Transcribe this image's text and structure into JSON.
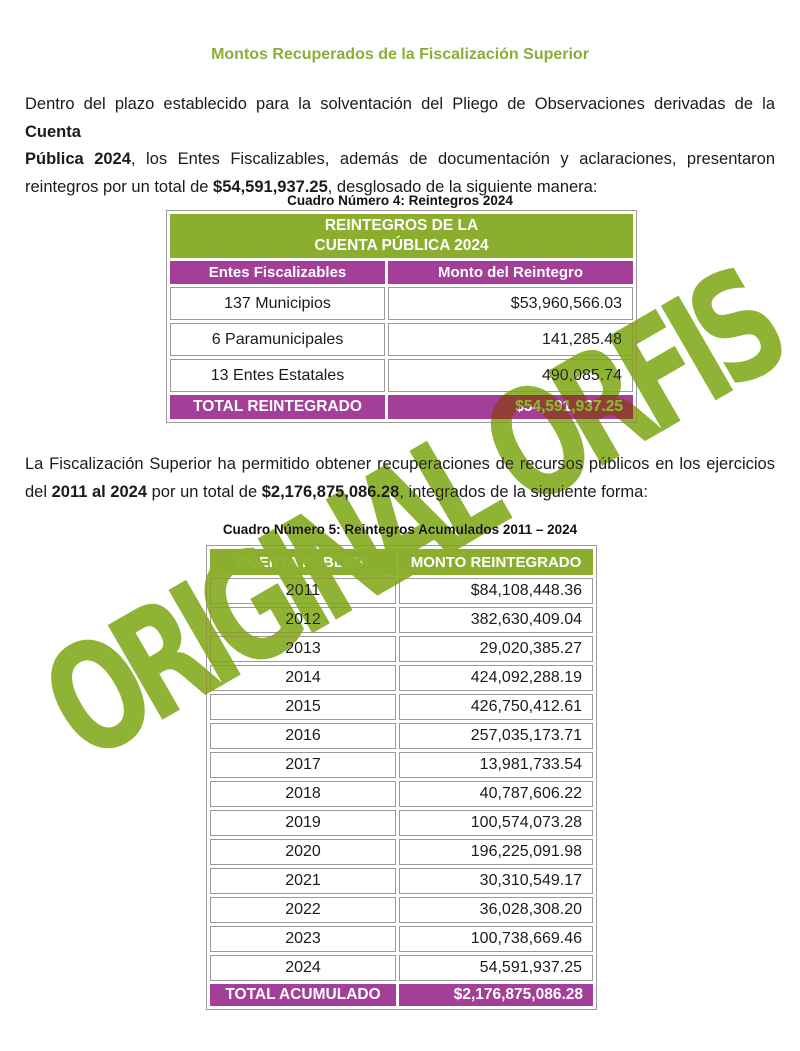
{
  "colors": {
    "green": "#8BAE2F",
    "title_green": "#8BAD3A",
    "purple": "#A33F99",
    "border": "#9A9A9A",
    "watermark": "#8FB335",
    "text": "#1B1B1B"
  },
  "title": "Montos Recuperados de la Fiscalización Superior",
  "paragraph1": {
    "lines": [
      {
        "j": true,
        "s": [
          {
            "t": "Dentro del plazo establecido para la solventación del Pliego de Observaciones derivadas de la ",
            "b": false
          },
          {
            "t": "Cuenta",
            "b": true
          }
        ]
      },
      {
        "j": true,
        "s": [
          {
            "t": "Pública 2024",
            "b": true
          },
          {
            "t": ", los Entes Fiscalizables, además de documentación y aclaraciones, presentaron",
            "b": false
          }
        ]
      },
      {
        "j": false,
        "s": [
          {
            "t": "reintegros por un total de ",
            "b": false
          },
          {
            "t": "$54,591,937.25",
            "b": true
          },
          {
            "t": ", desglosado de la siguiente manera:",
            "b": false
          }
        ]
      }
    ]
  },
  "table1": {
    "caption": "Cuadro Número 4: Reintegros 2024",
    "band_lines": [
      "REINTEGROS DE LA",
      "CUENTA PÚBLICA 2024"
    ],
    "col_headers": [
      "Entes Fiscalizables",
      "Monto del Reintegro"
    ],
    "rows": [
      [
        "137 Municipios",
        "$53,960,566.03"
      ],
      [
        "6 Paramunicipales",
        "141,285.48"
      ],
      [
        "13 Entes Estatales",
        "490,085.74"
      ]
    ],
    "total": [
      "TOTAL REINTEGRADO",
      "$54,591,937.25"
    ]
  },
  "paragraph2": {
    "lines": [
      {
        "j": true,
        "s": [
          {
            "t": "La Fiscalización Superior ha permitido obtener recuperaciones de recursos públicos en los ejercicios",
            "b": false
          }
        ]
      },
      {
        "j": false,
        "s": [
          {
            "t": "del ",
            "b": false
          },
          {
            "t": "2011 al 2024",
            "b": true
          },
          {
            "t": " por un total de ",
            "b": false
          },
          {
            "t": "$2,176,875,086.28",
            "b": true
          },
          {
            "t": ", integrados de la siguiente forma:",
            "b": false
          }
        ]
      }
    ]
  },
  "table2": {
    "caption": "Cuadro Número 5: Reintegros Acumulados 2011 – 2024",
    "col_headers": [
      "CUENTA PÚBLICA",
      "MONTO REINTEGRADO"
    ],
    "rows": [
      [
        "2011",
        "$84,108,448.36"
      ],
      [
        "2012",
        "382,630,409.04"
      ],
      [
        "2013",
        "29,020,385.27"
      ],
      [
        "2014",
        "424,092,288.19"
      ],
      [
        "2015",
        "426,750,412.61"
      ],
      [
        "2016",
        "257,035,173.71"
      ],
      [
        "2017",
        "13,981,733.54"
      ],
      [
        "2018",
        "40,787,606.22"
      ],
      [
        "2019",
        "100,574,073.28"
      ],
      [
        "2020",
        "196,225,091.98"
      ],
      [
        "2021",
        "30,310,549.17"
      ],
      [
        "2022",
        "36,028,308.20"
      ],
      [
        "2023",
        "100,738,669.46"
      ],
      [
        "2024",
        "54,591,937.25"
      ]
    ],
    "total": [
      "TOTAL ACUMULADO",
      "$2,176,875,086.28"
    ]
  },
  "watermark": {
    "text": "ORIGINAL ORFIS"
  }
}
